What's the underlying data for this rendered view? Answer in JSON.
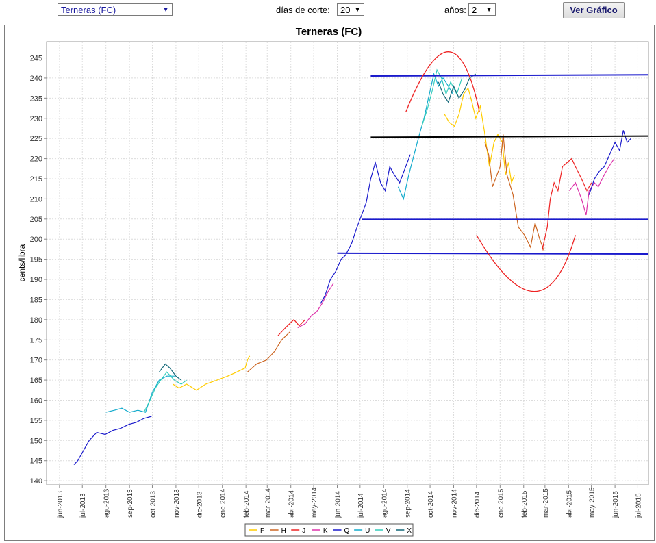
{
  "toolbar": {
    "product_select": "Terneras (FC)",
    "dias_label": "días de corte:",
    "dias_value": "20",
    "anos_label": "años:",
    "anos_value": "2",
    "button_label": "Ver Gráfico",
    "caret": "▼"
  },
  "chart_data": {
    "type": "line",
    "title": "Terneras (FC)",
    "ylabel": "cents/libra",
    "xlabel": "",
    "ylim": [
      139,
      249
    ],
    "yticks": [
      140,
      145,
      150,
      155,
      160,
      165,
      170,
      175,
      180,
      185,
      190,
      195,
      200,
      205,
      210,
      215,
      220,
      225,
      230,
      235,
      240,
      245
    ],
    "xlim": [
      "2013-05-15",
      "2015-07-15"
    ],
    "xticks": [
      {
        "label": "jun-2013",
        "date": "2013-06-01"
      },
      {
        "label": "jul-2013",
        "date": "2013-07-01"
      },
      {
        "label": "ago-2013",
        "date": "2013-08-01"
      },
      {
        "label": "sep-2013",
        "date": "2013-09-01"
      },
      {
        "label": "oct-2013",
        "date": "2013-10-01"
      },
      {
        "label": "nov-2013",
        "date": "2013-11-01"
      },
      {
        "label": "dic-2013",
        "date": "2013-12-01"
      },
      {
        "label": "ene-2014",
        "date": "2014-01-01"
      },
      {
        "label": "feb-2014",
        "date": "2014-02-01"
      },
      {
        "label": "mar-2014",
        "date": "2014-03-01"
      },
      {
        "label": "abr-2014",
        "date": "2014-04-01"
      },
      {
        "label": "may-2014",
        "date": "2014-05-01"
      },
      {
        "label": "jun-2014",
        "date": "2014-06-01"
      },
      {
        "label": "jul-2014",
        "date": "2014-07-01"
      },
      {
        "label": "ago-2014",
        "date": "2014-08-01"
      },
      {
        "label": "sep-2014",
        "date": "2014-09-01"
      },
      {
        "label": "oct-2014",
        "date": "2014-10-01"
      },
      {
        "label": "nov-2014",
        "date": "2014-11-01"
      },
      {
        "label": "dic-2014",
        "date": "2014-12-01"
      },
      {
        "label": "ene-2015",
        "date": "2015-01-01"
      },
      {
        "label": "feb-2015",
        "date": "2015-02-01"
      },
      {
        "label": "mar-2015",
        "date": "2015-03-01"
      },
      {
        "label": "abr-2015",
        "date": "2015-04-01"
      },
      {
        "label": "may-2015",
        "date": "2015-05-01"
      },
      {
        "label": "jun-2015",
        "date": "2015-06-01"
      },
      {
        "label": "jul-2015",
        "date": "2015-07-01"
      }
    ],
    "grid": true,
    "legend_position": "bottom",
    "series": [
      {
        "name": "F",
        "color": "#ffcc00",
        "segments": [
          [
            [
              "2013-10-28",
              164
            ],
            [
              "2013-11-05",
              163
            ],
            [
              "2013-11-15",
              164
            ],
            [
              "2013-11-28",
              162.5
            ],
            [
              "2013-12-10",
              164
            ],
            [
              "2013-12-25",
              165
            ],
            [
              "2014-01-08",
              166
            ],
            [
              "2014-01-20",
              167
            ],
            [
              "2014-01-31",
              168
            ],
            [
              "2014-02-03",
              170
            ],
            [
              "2014-02-06",
              171
            ]
          ],
          [
            [
              "2014-10-20",
              231
            ],
            [
              "2014-10-26",
              229
            ],
            [
              "2014-11-02",
              228
            ],
            [
              "2014-11-08",
              231
            ],
            [
              "2014-11-14",
              236
            ],
            [
              "2014-11-20",
              237.5
            ],
            [
              "2014-11-25",
              234
            ],
            [
              "2014-11-30",
              230
            ],
            [
              "2014-12-06",
              233
            ],
            [
              "2014-12-12",
              226
            ],
            [
              "2014-12-18",
              218
            ],
            [
              "2014-12-24",
              224
            ],
            [
              "2014-12-29",
              226
            ],
            [
              "2015-01-04",
              224
            ],
            [
              "2015-01-08",
              216
            ],
            [
              "2015-01-12",
              219
            ],
            [
              "2015-01-16",
              214
            ],
            [
              "2015-01-20",
              216
            ]
          ]
        ]
      },
      {
        "name": "H",
        "color": "#cc6622",
        "segments": [
          [
            [
              "2014-02-03",
              167
            ],
            [
              "2014-02-15",
              169
            ],
            [
              "2014-02-28",
              170
            ],
            [
              "2014-03-10",
              172
            ],
            [
              "2014-03-20",
              175
            ],
            [
              "2014-03-31",
              177
            ]
          ],
          [
            [
              "2014-12-12",
              224
            ],
            [
              "2014-12-17",
              221
            ],
            [
              "2014-12-22",
              213
            ],
            [
              "2015-01-01",
              218
            ],
            [
              "2015-01-05",
              226
            ],
            [
              "2015-01-10",
              216
            ],
            [
              "2015-01-18",
              211
            ],
            [
              "2015-01-25",
              203
            ],
            [
              "2015-02-02",
              201
            ],
            [
              "2015-02-10",
              198
            ],
            [
              "2015-02-16",
              204
            ],
            [
              "2015-02-22",
              200
            ],
            [
              "2015-02-28",
              197
            ]
          ]
        ]
      },
      {
        "name": "J",
        "color": "#ee2222",
        "segments": [
          [
            [
              "2014-03-15",
              176
            ],
            [
              "2014-03-25",
              178
            ],
            [
              "2014-04-05",
              180
            ],
            [
              "2014-04-12",
              178.5
            ],
            [
              "2014-04-20",
              180
            ]
          ],
          [
            [
              "2015-02-25",
              197
            ],
            [
              "2015-03-04",
              203
            ],
            [
              "2015-03-08",
              210
            ],
            [
              "2015-03-13",
              214
            ],
            [
              "2015-03-18",
              212
            ],
            [
              "2015-03-24",
              218
            ],
            [
              "2015-03-30",
              219
            ],
            [
              "2015-04-05",
              220
            ],
            [
              "2015-04-10",
              218
            ],
            [
              "2015-04-18",
              215
            ],
            [
              "2015-04-25",
              212
            ],
            [
              "2015-05-01",
              214
            ]
          ]
        ]
      },
      {
        "name": "K",
        "color": "#dd33aa",
        "segments": [
          [
            [
              "2014-04-10",
              178
            ],
            [
              "2014-04-20",
              179
            ],
            [
              "2014-04-28",
              181
            ],
            [
              "2014-05-05",
              182
            ],
            [
              "2014-05-12",
              184
            ],
            [
              "2014-05-20",
              187
            ],
            [
              "2014-05-27",
              189
            ]
          ],
          [
            [
              "2015-04-02",
              212
            ],
            [
              "2015-04-10",
              214
            ],
            [
              "2015-04-18",
              210
            ],
            [
              "2015-04-24",
              206
            ],
            [
              "2015-04-28",
              212
            ],
            [
              "2015-05-05",
              214
            ],
            [
              "2015-05-10",
              213
            ],
            [
              "2015-05-18",
              216
            ],
            [
              "2015-05-24",
              218
            ],
            [
              "2015-05-31",
              220
            ]
          ]
        ]
      },
      {
        "name": "Q",
        "color": "#1a1acc",
        "segments": [
          [
            [
              "2013-06-20",
              144
            ],
            [
              "2013-06-25",
              145
            ],
            [
              "2013-07-01",
              147
            ],
            [
              "2013-07-10",
              150
            ],
            [
              "2013-07-20",
              152
            ],
            [
              "2013-07-31",
              151.5
            ],
            [
              "2013-08-10",
              152.5
            ],
            [
              "2013-08-20",
              153
            ],
            [
              "2013-08-31",
              154
            ],
            [
              "2013-09-10",
              154.5
            ],
            [
              "2013-09-20",
              155.5
            ],
            [
              "2013-09-30",
              156
            ]
          ],
          [
            [
              "2014-05-10",
              184
            ],
            [
              "2014-05-16",
              186
            ],
            [
              "2014-05-23",
              190
            ],
            [
              "2014-05-30",
              192
            ],
            [
              "2014-06-06",
              195
            ],
            [
              "2014-06-12",
              196
            ],
            [
              "2014-06-20",
              199
            ],
            [
              "2014-06-27",
              203
            ],
            [
              "2014-07-03",
              206
            ],
            [
              "2014-07-09",
              209
            ],
            [
              "2014-07-15",
              215
            ],
            [
              "2014-07-21",
              219
            ],
            [
              "2014-07-28",
              214
            ],
            [
              "2014-08-03",
              212
            ],
            [
              "2014-08-09",
              218
            ],
            [
              "2014-08-15",
              216
            ],
            [
              "2014-08-22",
              214
            ],
            [
              "2014-08-30",
              218
            ],
            [
              "2014-09-05",
              221
            ]
          ],
          [
            [
              "2015-04-28",
              211
            ],
            [
              "2015-05-05",
              215
            ],
            [
              "2015-05-12",
              217
            ],
            [
              "2015-05-18",
              218
            ],
            [
              "2015-05-25",
              221
            ],
            [
              "2015-06-01",
              224
            ],
            [
              "2015-06-07",
              222
            ],
            [
              "2015-06-12",
              227
            ],
            [
              "2015-06-17",
              224
            ],
            [
              "2015-06-22",
              225
            ]
          ]
        ]
      },
      {
        "name": "U",
        "color": "#11aacc",
        "segments": [
          [
            [
              "2013-08-01",
              157
            ],
            [
              "2013-08-12",
              157.5
            ],
            [
              "2013-08-22",
              158
            ],
            [
              "2013-09-01",
              157
            ],
            [
              "2013-09-12",
              157.5
            ],
            [
              "2013-09-22",
              157
            ],
            [
              "2013-10-01",
              162
            ],
            [
              "2013-10-10",
              165
            ],
            [
              "2013-10-20",
              166
            ],
            [
              "2013-10-31",
              166
            ]
          ],
          [
            [
              "2014-08-20",
              213
            ],
            [
              "2014-08-27",
              210
            ],
            [
              "2014-09-03",
              216
            ],
            [
              "2014-09-10",
              221
            ],
            [
              "2014-09-17",
              226
            ],
            [
              "2014-09-23",
              230
            ],
            [
              "2014-09-30",
              236
            ],
            [
              "2014-10-06",
              241
            ],
            [
              "2014-10-12",
              238
            ],
            [
              "2014-10-18",
              240
            ],
            [
              "2014-10-25",
              238
            ],
            [
              "2014-10-31",
              236
            ]
          ]
        ]
      },
      {
        "name": "V",
        "color": "#33ccbb",
        "segments": [
          [
            [
              "2013-09-20",
              157
            ],
            [
              "2013-09-28",
              160
            ],
            [
              "2013-10-05",
              163
            ],
            [
              "2013-10-12",
              165
            ],
            [
              "2013-10-20",
              167
            ],
            [
              "2013-10-30",
              165
            ],
            [
              "2013-11-08",
              164
            ],
            [
              "2013-11-15",
              165
            ]
          ],
          [
            [
              "2014-09-20",
              228
            ],
            [
              "2014-09-27",
              232
            ],
            [
              "2014-10-04",
              237
            ],
            [
              "2014-10-10",
              242
            ],
            [
              "2014-10-16",
              240
            ],
            [
              "2014-10-22",
              236
            ],
            [
              "2014-10-28",
              239
            ],
            [
              "2014-11-05",
              236
            ],
            [
              "2014-11-12",
              240
            ]
          ]
        ]
      },
      {
        "name": "X",
        "color": "#116677",
        "segments": [
          [
            [
              "2013-10-10",
              167
            ],
            [
              "2013-10-18",
              169
            ],
            [
              "2013-10-24",
              168
            ],
            [
              "2013-11-01",
              166
            ],
            [
              "2013-11-08",
              165
            ]
          ],
          [
            [
              "2014-10-12",
              239
            ],
            [
              "2014-10-18",
              236
            ],
            [
              "2014-10-25",
              234
            ],
            [
              "2014-11-01",
              238
            ],
            [
              "2014-11-08",
              235
            ],
            [
              "2014-11-15",
              237
            ],
            [
              "2014-11-22",
              240
            ],
            [
              "2014-11-30",
              241
            ]
          ]
        ]
      }
    ],
    "annotations": [
      {
        "kind": "hline",
        "color": "#1a1acc",
        "x1": "2014-07-15",
        "x2": "2015-07-15",
        "y1": 240.5,
        "y2": 240.8
      },
      {
        "kind": "hline",
        "color": "#000000",
        "x1": "2014-07-15",
        "x2": "2015-07-15",
        "y1": 225.3,
        "y2": 225.6
      },
      {
        "kind": "hline",
        "color": "#1a1acc",
        "x1": "2014-07-03",
        "x2": "2015-07-15",
        "y1": 204.9,
        "y2": 204.9
      },
      {
        "kind": "hline",
        "color": "#1a1acc",
        "x1": "2014-06-01",
        "x2": "2015-07-15",
        "y1": 196.5,
        "y2": 196.3
      },
      {
        "kind": "arc",
        "color": "#ee2222",
        "start": [
          "2014-08-30",
          231.5
        ],
        "peak": [
          "2014-10-25",
          246.5
        ],
        "end": [
          "2014-12-05",
          231.5
        ]
      },
      {
        "kind": "arc",
        "color": "#ee2222",
        "start": [
          "2014-12-01",
          201
        ],
        "peak": [
          "2015-02-15",
          187
        ],
        "end": [
          "2015-04-10",
          201
        ]
      }
    ]
  }
}
